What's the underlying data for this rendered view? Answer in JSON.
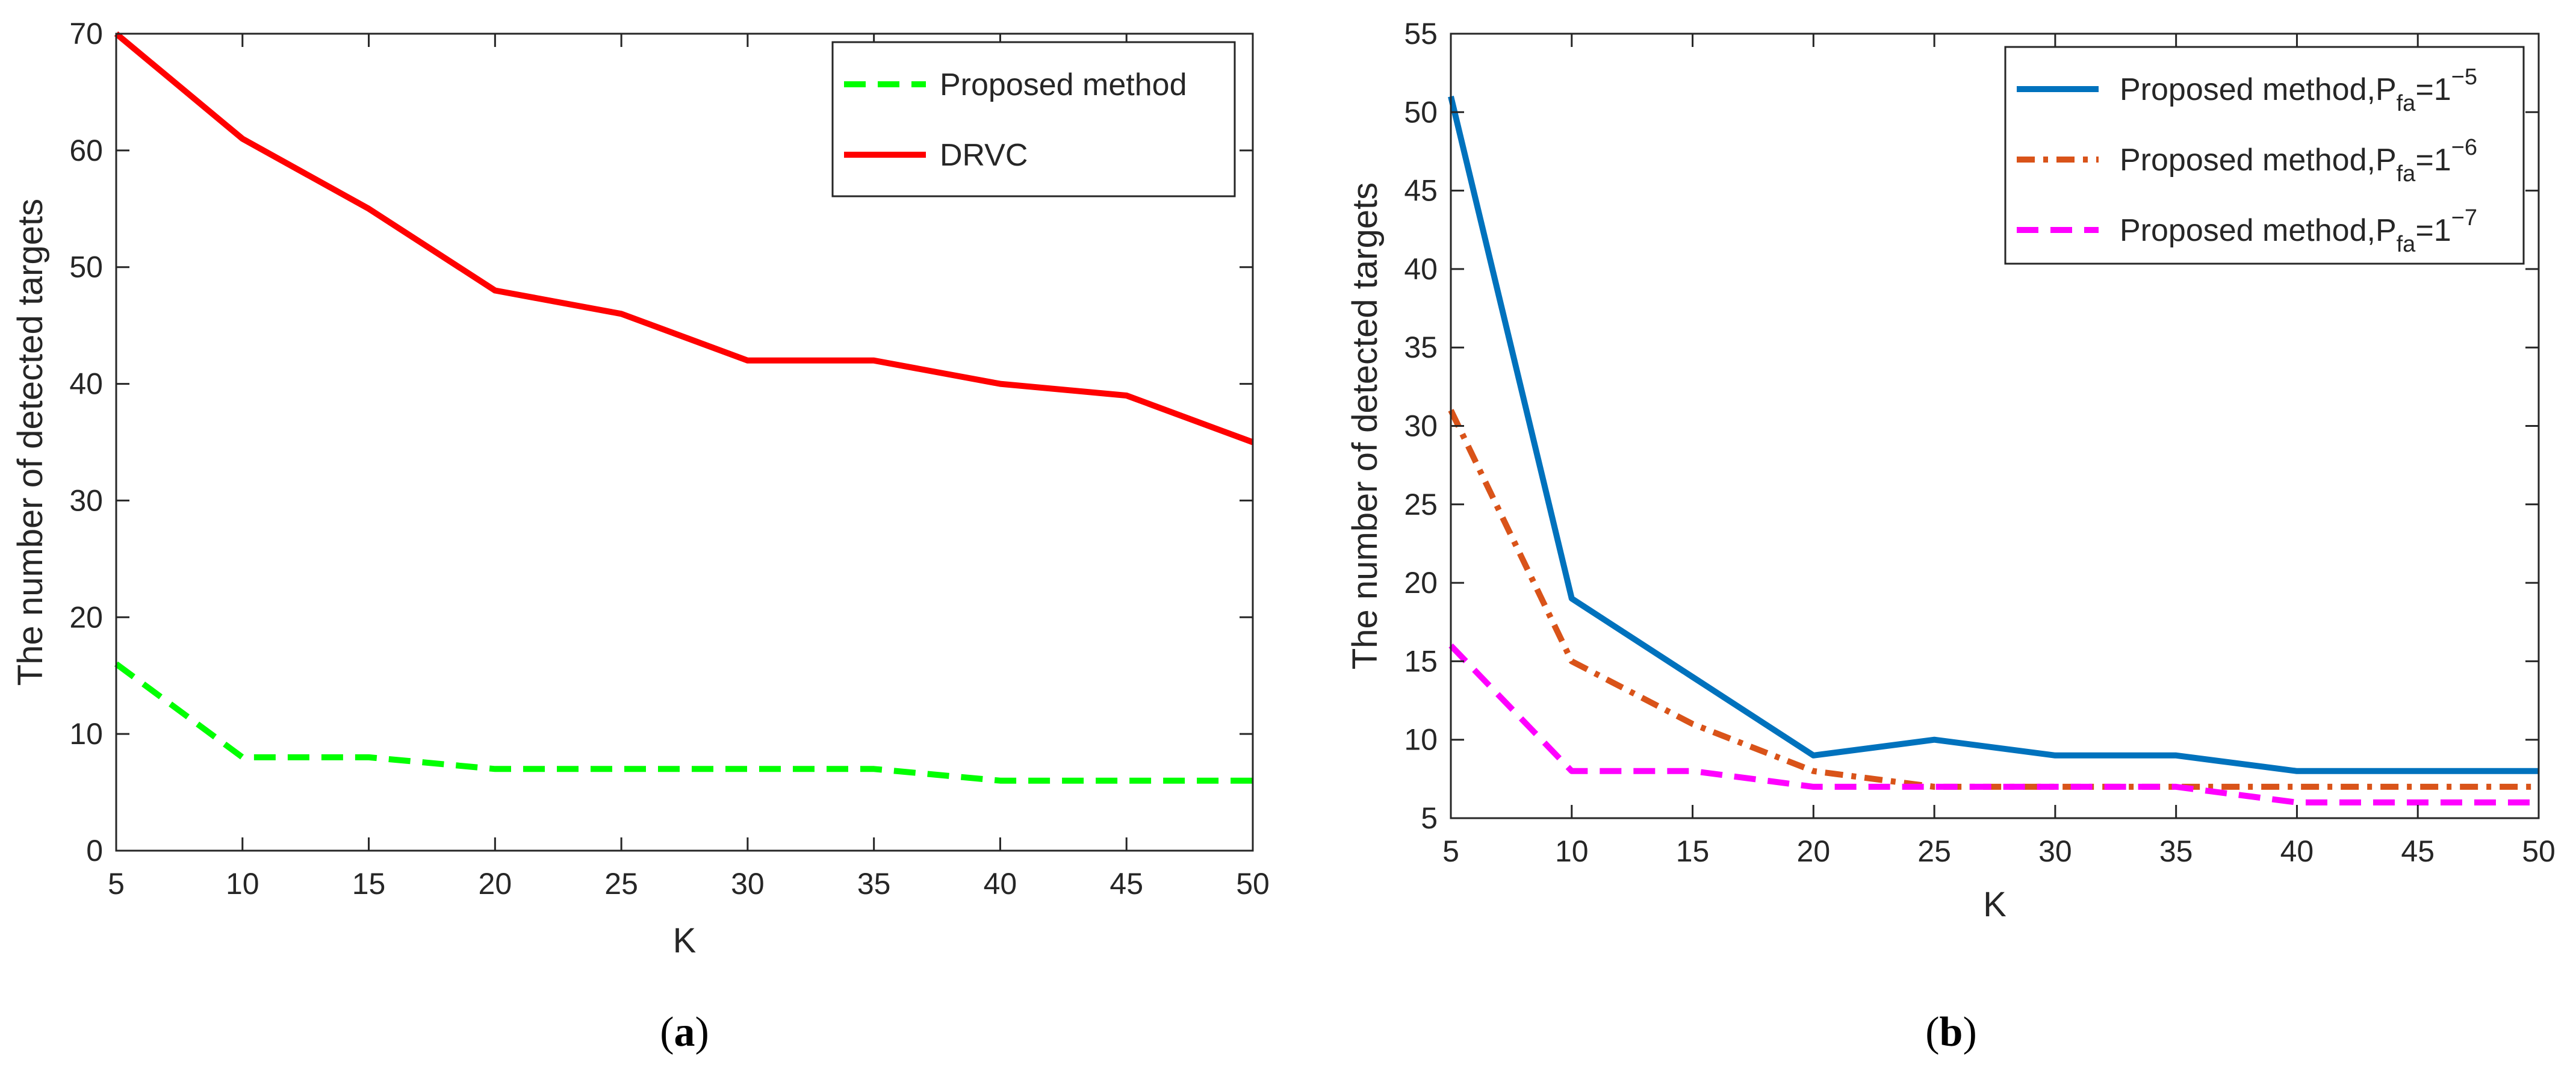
{
  "chart_data": [
    {
      "panel_id": "a",
      "caption": {
        "open": "(",
        "letter": "a",
        "close": ")"
      },
      "type": "line",
      "xlabel": "K",
      "ylabel": "The number of detected targets",
      "xlim": [
        5,
        50
      ],
      "ylim": [
        0,
        70
      ],
      "xticks": [
        5,
        10,
        15,
        20,
        25,
        30,
        35,
        40,
        45,
        50
      ],
      "yticks": [
        0,
        10,
        20,
        30,
        40,
        50,
        60,
        70
      ],
      "grid": false,
      "legend_position": "top-right",
      "x": [
        5,
        10,
        15,
        20,
        25,
        30,
        35,
        40,
        45,
        50
      ],
      "series": [
        {
          "name": "Proposed method",
          "color": "#00ff00",
          "style": "dashed",
          "values": [
            16,
            8,
            8,
            7,
            7,
            7,
            7,
            6,
            6,
            6
          ]
        },
        {
          "name": "DRVC",
          "color": "#ff0000",
          "style": "solid",
          "values": [
            70,
            61,
            55,
            48,
            46,
            42,
            42,
            40,
            39,
            35
          ]
        }
      ]
    },
    {
      "panel_id": "b",
      "caption": {
        "open": "(",
        "letter": "b",
        "close": ")"
      },
      "type": "line",
      "xlabel": "K",
      "ylabel": "The number of detected targets",
      "xlim": [
        5,
        50
      ],
      "ylim": [
        5,
        55
      ],
      "xticks": [
        5,
        10,
        15,
        20,
        25,
        30,
        35,
        40,
        45,
        50
      ],
      "yticks": [
        5,
        10,
        15,
        20,
        25,
        30,
        35,
        40,
        45,
        50,
        55
      ],
      "grid": false,
      "legend_position": "top-right",
      "x": [
        5,
        10,
        15,
        20,
        25,
        30,
        35,
        40,
        45,
        50
      ],
      "series": [
        {
          "name": "Proposed method,P",
          "sub": "fa",
          "eq": "=1",
          "sup": "−5",
          "color": "#0072bd",
          "style": "solid",
          "values": [
            51,
            19,
            14,
            9,
            10,
            9,
            9,
            8,
            8,
            8
          ]
        },
        {
          "name": "Proposed method,P",
          "sub": "fa",
          "eq": "=1",
          "sup": "−6",
          "color": "#d95319",
          "style": "dashdot",
          "values": [
            31,
            15,
            11,
            8,
            7,
            7,
            7,
            7,
            7,
            7
          ]
        },
        {
          "name": "Proposed method,P",
          "sub": "fa",
          "eq": "=1",
          "sup": "−7",
          "color": "#ff00ff",
          "style": "dashed",
          "values": [
            16,
            8,
            8,
            7,
            7,
            7,
            7,
            6,
            6,
            6
          ]
        }
      ]
    }
  ]
}
